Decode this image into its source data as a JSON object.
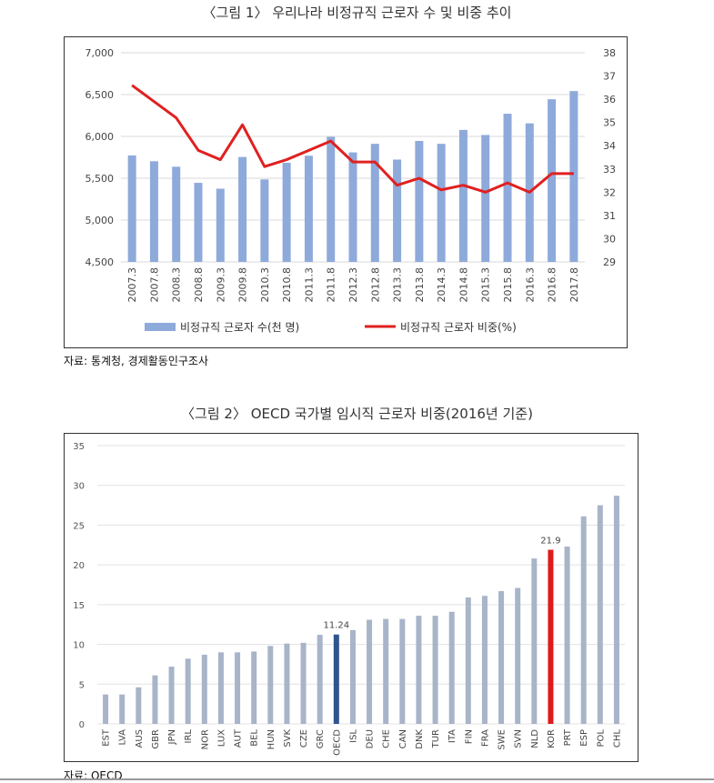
{
  "figure1": {
    "title": "〈그림 1〉 우리나라 비정규직 근로자 수 및 비중 추이",
    "source": "자료: 통계청, 경제활동인구조사",
    "chart_data": {
      "type": "bar+line",
      "categories": [
        "2007.3",
        "2007.8",
        "2008.3",
        "2008.8",
        "2009.3",
        "2009.8",
        "2010.3",
        "2010.8",
        "2011.3",
        "2011.8",
        "2012.3",
        "2012.8",
        "2013.3",
        "2013.8",
        "2014.3",
        "2014.8",
        "2015.3",
        "2015.8",
        "2016.3",
        "2016.8",
        "2017.8"
      ],
      "series": [
        {
          "name": "비정규직 근로자 수(천 명)",
          "type": "bar",
          "axis": "left",
          "values": [
            5773,
            5703,
            5638,
            5445,
            5375,
            5754,
            5486,
            5685,
            5769,
            5995,
            5809,
            5911,
            5723,
            5946,
            5911,
            6077,
            6017,
            6271,
            6156,
            6444,
            6542
          ]
        },
        {
          "name": "비정규직 근로자 비중(%)",
          "type": "line",
          "axis": "right",
          "values": [
            36.6,
            35.9,
            35.2,
            33.8,
            33.4,
            34.9,
            33.1,
            33.4,
            33.8,
            34.2,
            33.3,
            33.3,
            32.3,
            32.6,
            32.1,
            32.3,
            32.0,
            32.4,
            32.0,
            32.8,
            32.8
          ]
        }
      ],
      "ylim_left": [
        4500,
        7000
      ],
      "yticks_left": [
        "4,500",
        "5,000",
        "5,500",
        "6,000",
        "6,500",
        "7,000"
      ],
      "ylim_right": [
        29,
        38
      ],
      "yticks_right": [
        "29",
        "30",
        "31",
        "32",
        "33",
        "34",
        "35",
        "36",
        "37",
        "38"
      ],
      "legend": [
        "비정규직 근로자 수(천 명)",
        "비정규직 근로자 비중(%)"
      ],
      "colors": {
        "bar": "#8eaadb",
        "line": "#e02020",
        "grid": "#d9d9d9"
      }
    }
  },
  "figure2": {
    "title": "〈그림 2〉 OECD 국가별 임시직 근로자 비중(2016년 기준)",
    "source": "자료: OECD",
    "chart_data": {
      "type": "bar",
      "categories": [
        "EST",
        "LVA",
        "AUS",
        "GBR",
        "JPN",
        "IRL",
        "NOR",
        "LUX",
        "AUT",
        "BEL",
        "HUN",
        "SVK",
        "CZE",
        "GRC",
        "OECD",
        "ISL",
        "DEU",
        "CHE",
        "CAN",
        "DNK",
        "TUR",
        "ITA",
        "FIN",
        "FRA",
        "SWE",
        "SVN",
        "NLD",
        "KOR",
        "PRT",
        "ESP",
        "POL",
        "CHL"
      ],
      "values": [
        3.7,
        3.7,
        4.6,
        6.1,
        7.2,
        8.2,
        8.7,
        9.0,
        9.0,
        9.1,
        9.8,
        10.1,
        10.2,
        11.2,
        11.24,
        11.8,
        13.1,
        13.2,
        13.2,
        13.6,
        13.6,
        14.1,
        15.9,
        16.1,
        16.7,
        17.1,
        20.8,
        21.9,
        22.3,
        26.1,
        27.5,
        28.7
      ],
      "data_labels": {
        "OECD": "11.24",
        "KOR": "21.9"
      },
      "ylim": [
        0,
        35
      ],
      "yticks": [
        "0",
        "5",
        "10",
        "15",
        "20",
        "25",
        "30",
        "35"
      ],
      "colors": {
        "default": "#a8b4c8",
        "OECD": "#2f5491",
        "KOR": "#e01b1b",
        "grid": "#e3e3e3"
      }
    }
  }
}
